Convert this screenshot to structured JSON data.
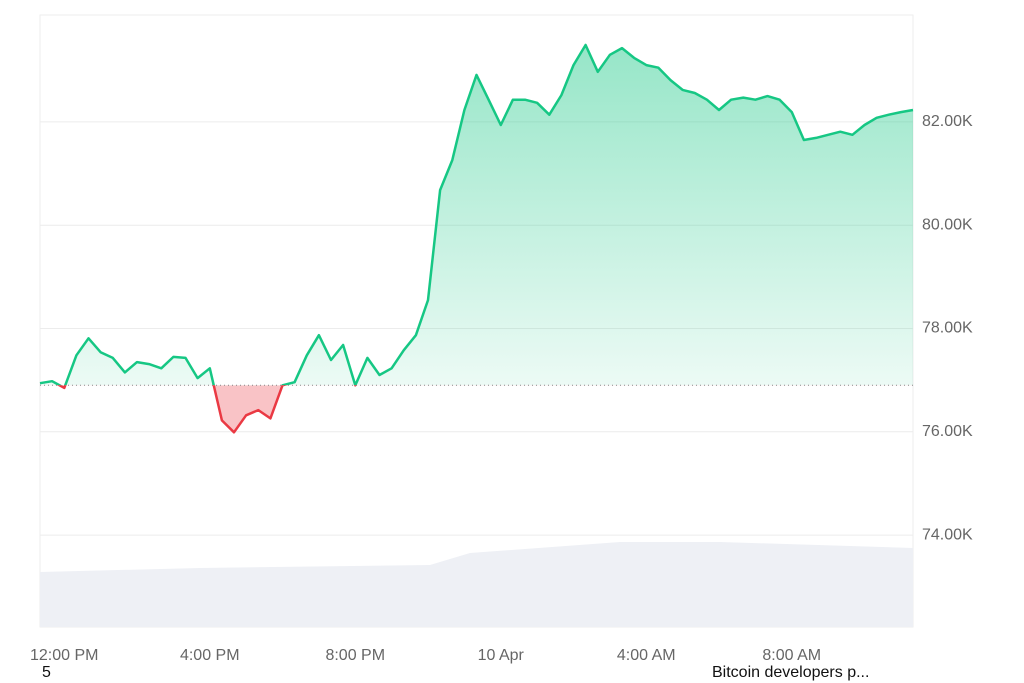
{
  "chart_data": {
    "type": "line",
    "categories": [
      null,
      null,
      "12:00 PM",
      null,
      null,
      null,
      null,
      null,
      null,
      null,
      null,
      null,
      null,
      null,
      "4:00 PM",
      null,
      null,
      null,
      null,
      null,
      null,
      null,
      null,
      null,
      null,
      null,
      "8:00 PM",
      null,
      null,
      null,
      null,
      null,
      null,
      null,
      null,
      null,
      null,
      null,
      "10 Apr",
      null,
      null,
      null,
      null,
      null,
      null,
      null,
      null,
      null,
      null,
      null,
      "4:00 AM",
      null,
      null,
      null,
      null,
      null,
      null,
      null,
      null,
      null,
      null,
      null,
      "8:00 AM",
      null,
      null,
      null,
      null,
      null,
      null,
      null,
      null,
      null,
      null
    ],
    "values": [
      76940,
      76980,
      76850,
      77480,
      77810,
      77540,
      77430,
      77150,
      77350,
      77310,
      77230,
      77450,
      77430,
      77040,
      77230,
      76220,
      75990,
      76320,
      76420,
      76260,
      76900,
      76960,
      77480,
      77870,
      77390,
      77680,
      76900,
      77430,
      77100,
      77230,
      77580,
      77870,
      78550,
      80680,
      81260,
      82230,
      82910,
      82430,
      81940,
      82430,
      82430,
      82370,
      82140,
      82520,
      83100,
      83490,
      82970,
      83300,
      83430,
      83240,
      83100,
      83050,
      82810,
      82620,
      82560,
      82430,
      82230,
      82430,
      82470,
      82430,
      82500,
      82430,
      82190,
      81650,
      81690,
      81750,
      81810,
      81750,
      81940,
      82080,
      82140,
      82190,
      82230
    ],
    "baseline": 76900,
    "color_up": "#16c784",
    "color_down": "#ea3943",
    "ylim": [
      72220,
      84070
    ],
    "yticks": [
      {
        "value": 74000,
        "label": "74.00K"
      },
      {
        "value": 76000,
        "label": "76.00K"
      },
      {
        "value": 78000,
        "label": "78.00K"
      },
      {
        "value": 80000,
        "label": "80.00K"
      },
      {
        "value": 82000,
        "label": "82.00K"
      }
    ],
    "grid": true
  },
  "footer": {
    "left": "5",
    "right": "Bitcoin developers p..."
  }
}
